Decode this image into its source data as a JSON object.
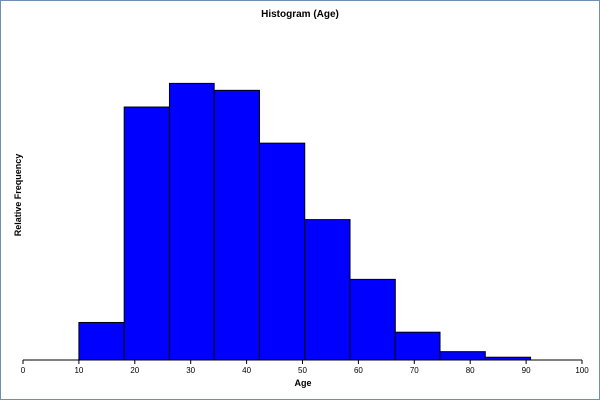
{
  "chart_data": {
    "type": "histogram",
    "title": "Histogram (Age)",
    "xlabel": "Age",
    "ylabel": "Relative Frequency",
    "xlim": [
      0,
      100
    ],
    "x_ticks": [
      "0",
      "10",
      "20",
      "30",
      "40",
      "50",
      "60",
      "70",
      "80",
      "90",
      "100"
    ],
    "y_ticks_shown": false,
    "grid": false,
    "bar_color": "#0000FF",
    "bar_edge_color": "#000000",
    "bins": [
      {
        "start": 10.0,
        "end": 18.1,
        "value": 0.135
      },
      {
        "start": 18.1,
        "end": 26.2,
        "value": 0.91
      },
      {
        "start": 26.2,
        "end": 34.2,
        "value": 0.995
      },
      {
        "start": 34.2,
        "end": 42.3,
        "value": 0.97
      },
      {
        "start": 42.3,
        "end": 50.4,
        "value": 0.78
      },
      {
        "start": 50.4,
        "end": 58.5,
        "value": 0.505
      },
      {
        "start": 58.5,
        "end": 66.6,
        "value": 0.29
      },
      {
        "start": 66.6,
        "end": 74.6,
        "value": 0.1
      },
      {
        "start": 74.6,
        "end": 82.7,
        "value": 0.03
      },
      {
        "start": 82.7,
        "end": 90.8,
        "value": 0.01
      }
    ]
  }
}
